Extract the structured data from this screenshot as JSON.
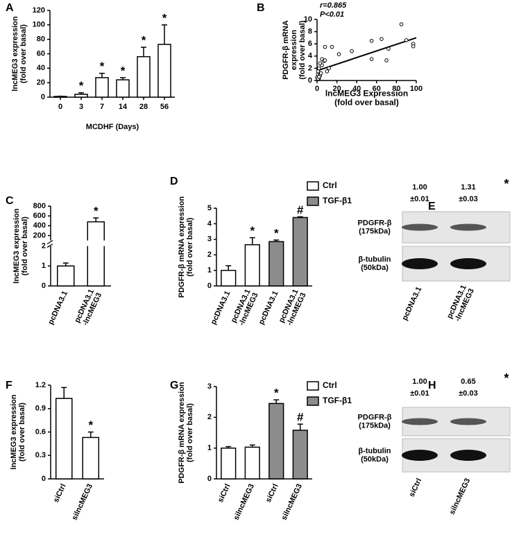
{
  "chart_data": [
    {
      "panel": "A",
      "type": "bar",
      "categories": [
        "0",
        "3",
        "7",
        "14",
        "28",
        "56"
      ],
      "values": [
        1,
        4,
        27,
        24,
        56,
        73
      ],
      "errors": [
        0.3,
        2,
        6,
        3,
        13,
        27
      ],
      "markers": [
        null,
        "*",
        "*",
        "*",
        "*",
        "*"
      ],
      "color": "#ffffff",
      "ylabel": "lncMEG3 expression\n(fold over basal)",
      "xlabel": "MCDHF (Days)",
      "ylim": [
        0,
        120
      ],
      "yticks": [
        0,
        20,
        40,
        60,
        80,
        100,
        120
      ]
    },
    {
      "panel": "B",
      "type": "scatter",
      "x": [
        0,
        1,
        1,
        2,
        2,
        3,
        3,
        4,
        5,
        5,
        7,
        8,
        10,
        12,
        15,
        22,
        35,
        55,
        55,
        65,
        70,
        72,
        85,
        90,
        97,
        97,
        8,
        3,
        1,
        2
      ],
      "y": [
        0.5,
        1,
        1.5,
        0.3,
        2,
        1,
        0.8,
        1.2,
        2.5,
        3.5,
        3.2,
        3.3,
        1.5,
        2,
        5.5,
        4.3,
        4.8,
        6.5,
        3.5,
        6.8,
        3.3,
        5.2,
        9.2,
        6.6,
        6,
        5.6,
        5.5,
        2.8,
        0.3,
        0.6
      ],
      "trendline": {
        "x": [
          0,
          100
        ],
        "y": [
          1.6,
          7
        ]
      },
      "annotations": [
        "r=0.865",
        "P<0.01"
      ],
      "xlabel": "lncMEG3 Expression\n(fold over basal)",
      "ylabel": "PDGFR-β mRNA\nexpression\n(fold over basal)",
      "xlim": [
        0,
        100
      ],
      "xticks": [
        0,
        20,
        40,
        60,
        80,
        100
      ],
      "ylim": [
        0,
        10
      ],
      "yticks": [
        0,
        2,
        4,
        6,
        8,
        10
      ]
    },
    {
      "panel": "C",
      "type": "bar",
      "categories": [
        "pcDNA3.1",
        "pcDNA3.1\n-lncMEG3"
      ],
      "values": [
        1,
        480
      ],
      "errors": [
        0.15,
        80
      ],
      "markers": [
        null,
        "*"
      ],
      "color": "#ffffff",
      "ylabel": "lncMEG3 expression\n(fold over basal)",
      "ylim": [
        0,
        800
      ],
      "yticks": [
        0,
        1,
        2,
        200,
        400,
        600,
        800
      ],
      "ybreak": [
        2,
        100
      ]
    },
    {
      "panel": "D",
      "type": "bar",
      "categories": [
        "pcDNA3.1",
        "pcDNA3.1\n-lncMEG3",
        "pcDNA3.1",
        "pcDNA3.1\n-lncMEG3"
      ],
      "series": [
        {
          "name": "Ctrl",
          "color": "#ffffff",
          "values": [
            1.0,
            2.65,
            null,
            null
          ],
          "errors": [
            0.3,
            0.45,
            null,
            null
          ]
        },
        {
          "name": "TGF-β1",
          "color": "#8c8c8c",
          "values": [
            null,
            null,
            2.85,
            4.4
          ],
          "errors": [
            null,
            null,
            0.1,
            0.05
          ]
        }
      ],
      "markers": [
        null,
        "*",
        "*",
        "#"
      ],
      "ylabel": "PDGFR-β mRNA expression\n(fold over basal)",
      "ylim": [
        0,
        5
      ],
      "yticks": [
        0,
        1,
        2,
        3,
        4,
        5
      ]
    },
    {
      "panel": "E",
      "type": "blot",
      "quant": [
        "1.00",
        "1.31"
      ],
      "sd": [
        "±0.01",
        "±0.03"
      ],
      "significance": "*",
      "rows": [
        "PDGFR-β\n(175kDa)",
        "β-tubulin\n(50kDa)"
      ],
      "lanes": [
        "pcDNA3.1",
        "pcDNA3.1\n-lncMEG3"
      ]
    },
    {
      "panel": "F",
      "type": "bar",
      "categories": [
        "siCtrl",
        "silncMEG3"
      ],
      "values": [
        1.03,
        0.53
      ],
      "errors": [
        0.14,
        0.07
      ],
      "markers": [
        null,
        "*"
      ],
      "color": "#ffffff",
      "ylabel": "lncMEG3 expression\n(fold over basal)",
      "ylim": [
        0,
        1.2
      ],
      "yticks": [
        0,
        0.3,
        0.6,
        0.9,
        1.2
      ]
    },
    {
      "panel": "G",
      "type": "bar",
      "categories": [
        "siCtrl",
        "silncMEG3",
        "siCtrl",
        "silncMEG3"
      ],
      "series": [
        {
          "name": "Ctrl",
          "color": "#ffffff",
          "values": [
            1.0,
            1.03,
            null,
            null
          ],
          "errors": [
            0.05,
            0.07,
            null,
            null
          ]
        },
        {
          "name": "TGF-β1",
          "color": "#8c8c8c",
          "values": [
            null,
            null,
            2.45,
            1.58
          ],
          "errors": [
            null,
            null,
            0.12,
            0.2
          ]
        }
      ],
      "markers": [
        null,
        null,
        "*",
        "#"
      ],
      "ylabel": "PDGFR-β mRNA expression\n(fold over basal)",
      "ylim": [
        0,
        3
      ],
      "yticks": [
        0,
        1,
        2,
        3
      ]
    },
    {
      "panel": "H",
      "type": "blot",
      "quant": [
        "1.00",
        "0.65"
      ],
      "sd": [
        "±0.01",
        "±0.03"
      ],
      "significance": "*",
      "rows": [
        "PDGFR-β\n(175kDa)",
        "β-tubulin\n(50kDa)"
      ],
      "lanes": [
        "siCtrl",
        "silncMEG3"
      ]
    }
  ]
}
